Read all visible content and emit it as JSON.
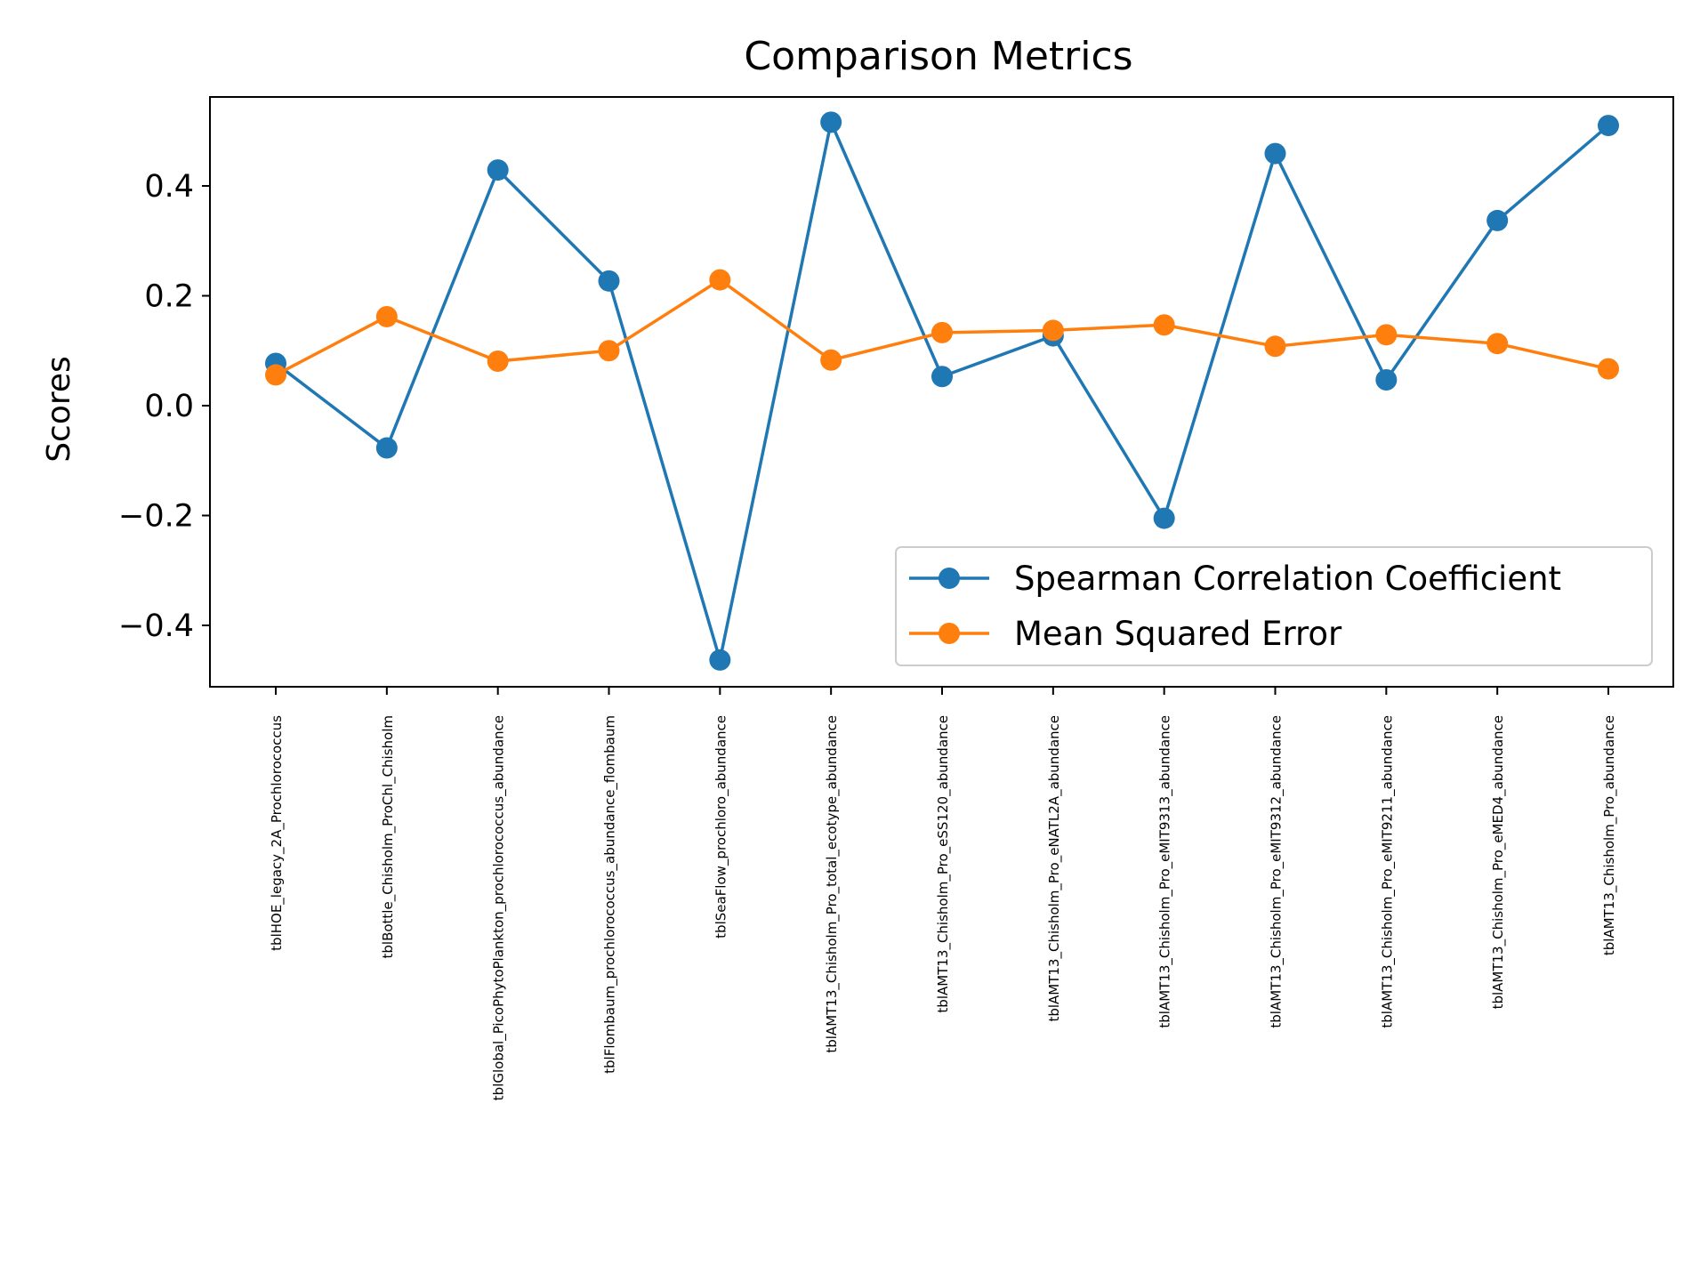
{
  "chart_data": {
    "type": "line",
    "title": "Comparison Metrics",
    "xlabel": "",
    "ylabel": "Scores",
    "ylim": [
      -0.52,
      0.56
    ],
    "yticks": [
      -0.4,
      -0.2,
      0.0,
      0.2,
      0.4
    ],
    "ytick_labels": [
      "−0.4",
      "−0.2",
      "0.0",
      "0.2",
      "0.4"
    ],
    "grid": false,
    "legend_position": "lower-right",
    "categories": [
      "tblHOE_legacy_2A_Prochlorococcus",
      "tblBottle_Chisholm_ProChl_Chisholm",
      "tblGlobal_PicoPhytoPlankton_prochlorococcus_abundance",
      "tblFlombaum_prochlorococcus_abundance_flombaum",
      "tblSeaFlow_prochloro_abundance",
      "tblAMT13_Chisholm_Pro_total_ecotype_abundance",
      "tblAMT13_Chisholm_Pro_eSS120_abundance",
      "tblAMT13_Chisholm_Pro_eNATL2A_abundance",
      "tblAMT13_Chisholm_Pro_eMIT9313_abundance",
      "tblAMT13_Chisholm_Pro_eMIT9312_abundance",
      "tblAMT13_Chisholm_Pro_eMIT9211_abundance",
      "tblAMT13_Chisholm_Pro_eMED4_abundance",
      "tblAMT13_Chisholm_Pro_abundance"
    ],
    "series": [
      {
        "name": "Spearman Correlation Coefficient",
        "color": "#1f77b4",
        "values": [
          0.077,
          -0.077,
          0.429,
          0.227,
          -0.463,
          0.516,
          0.053,
          0.127,
          -0.205,
          0.459,
          0.047,
          0.337,
          0.51
        ]
      },
      {
        "name": "Mean Squared Error",
        "color": "#ff7f0e",
        "values": [
          0.056,
          0.162,
          0.081,
          0.1,
          0.229,
          0.083,
          0.133,
          0.137,
          0.147,
          0.108,
          0.129,
          0.113,
          0.067
        ]
      }
    ]
  }
}
